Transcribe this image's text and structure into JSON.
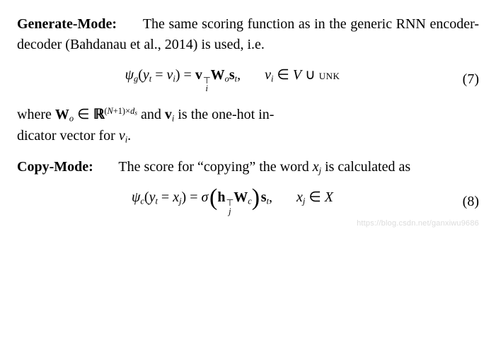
{
  "p1": {
    "heading": "Generate-Mode:",
    "text": "The same scoring function as in the generic RNN encoder-decoder (Bahdanau et al., 2014) is used, i.e."
  },
  "eq7": {
    "psi": "ψ",
    "psi_sub": "g",
    "lhs_open": "(",
    "y": "y",
    "y_sub": "t",
    "eq": " = ",
    "vlhs": "v",
    "vlhs_sub": "i",
    "lhs_close": ")",
    "equals": " = ",
    "v": "v",
    "v_sup": "⊤",
    "v_sub": "i",
    "W": "W",
    "W_sub": "o",
    "s": "s",
    "s_sub": "t",
    "comma": ",",
    "cond_v": "v",
    "cond_v_sub": "i",
    "in": " ∈ ",
    "V": "V",
    "cup": " ∪ ",
    "unk": "unk",
    "num": "(7)"
  },
  "p2": {
    "where": "where ",
    "W": "W",
    "W_sub": "o",
    "in": " ∈ ",
    "R": "R",
    "exp_open": "(",
    "N": "N",
    "plus1": "+1",
    "exp_close": ")",
    "times": "×",
    "d": "d",
    "d_sub": "s",
    "and": " and ",
    "v": "v",
    "v_sub": "i",
    "rest1": " is the one-hot in-",
    "rest2": "dicator vector for ",
    "vend": "v",
    "vend_sub": "i",
    "dot": "."
  },
  "p3": {
    "heading": "Copy-Mode:",
    "text1": "The score for “copying” the word ",
    "x": "x",
    "x_sub": "j",
    "text2": " is calculated as"
  },
  "eq8": {
    "psi": "ψ",
    "psi_sub": "c",
    "lhs_open": "(",
    "y": "y",
    "y_sub": "t",
    "eq": " = ",
    "xlhs": "x",
    "xlhs_sub": "j",
    "lhs_close": ")",
    "equals": " = ",
    "sigma": "σ",
    "h": "h",
    "h_sup": "⊤",
    "h_sub": "j",
    "W": "W",
    "W_sub": "c",
    "s": "s",
    "s_sub": "t",
    "comma": ",",
    "cond_x": "x",
    "cond_x_sub": "j",
    "in": " ∈ ",
    "X": "X",
    "num": "(8)"
  },
  "watermark": "https://blog.csdn.net/ganxiwu9686"
}
